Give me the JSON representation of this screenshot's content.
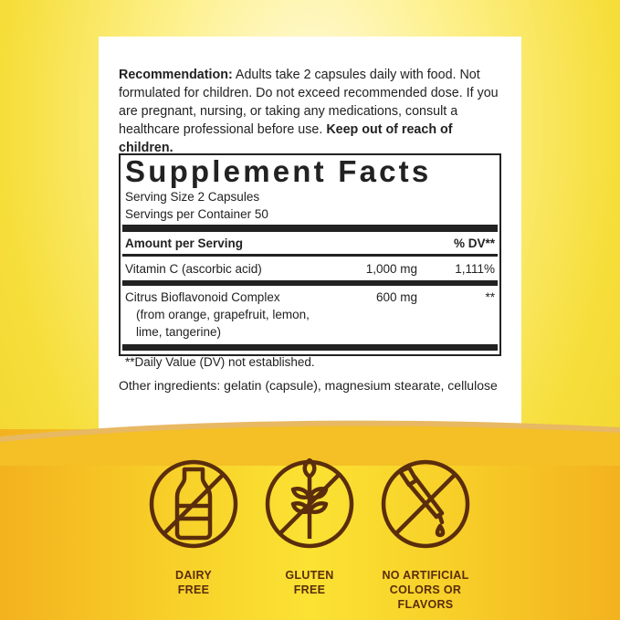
{
  "recommendation": {
    "label": "Recommendation:",
    "text": " Adults take 2 capsules daily with food. Not formulated for children. Do not exceed recommended dose. If you are pregnant, nursing, or taking any medications, consult a healthcare professional before use. ",
    "warning": "Keep out of reach of children."
  },
  "facts": {
    "title": "Supplement Facts",
    "serving_size": "Serving Size 2 Capsules",
    "servings_per_container": "Servings per Container 50",
    "header": {
      "amount": "Amount per Serving",
      "dv": "% DV**"
    },
    "rows": [
      {
        "name": "Vitamin C (ascorbic acid)",
        "amount": "1,000 mg",
        "dv": "1,111%"
      },
      {
        "name": "Citrus Bioflavonoid Complex",
        "sub1": "(from orange, grapefruit, lemon,",
        "sub2": "lime, tangerine)",
        "amount": "600 mg",
        "dv": "**"
      }
    ],
    "footnote": "**Daily Value (DV) not established."
  },
  "other_ingredients": "Other ingredients: gelatin (capsule), magnesium stearate, cellulose",
  "badges": [
    {
      "icon": "no-milk-bottle-icon",
      "line1": "DAIRY",
      "line2": "FREE"
    },
    {
      "icon": "no-wheat-icon",
      "line1": "GLUTEN",
      "line2": "FREE"
    },
    {
      "icon": "no-dropper-icon",
      "line1": "NO ARTIFICIAL",
      "line2": "COLORS OR",
      "line3": "FLAVORS"
    }
  ],
  "colors": {
    "icon_brown": "#5a2d0c",
    "yellow": "#f8d22a",
    "orange": "#f3b21e"
  }
}
